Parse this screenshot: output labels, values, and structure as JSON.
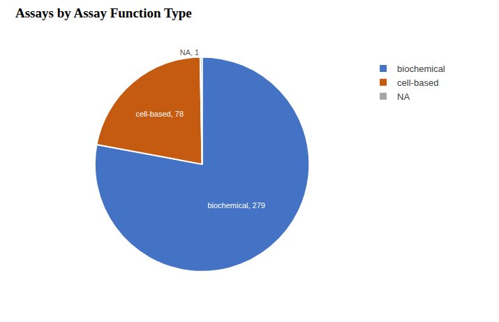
{
  "chart_data": {
    "type": "pie",
    "title": "Assays by Assay Function Type",
    "categories": [
      "biochemical",
      "cell-based",
      "NA"
    ],
    "values": [
      279,
      78,
      1
    ],
    "value_labels": [
      "biochemical, 279",
      "cell-based, 78",
      "NA, 1"
    ],
    "colors": [
      "#4472c4",
      "#c55a11",
      "#a5a5a5"
    ],
    "data_labels": true,
    "legend": "upper right"
  }
}
